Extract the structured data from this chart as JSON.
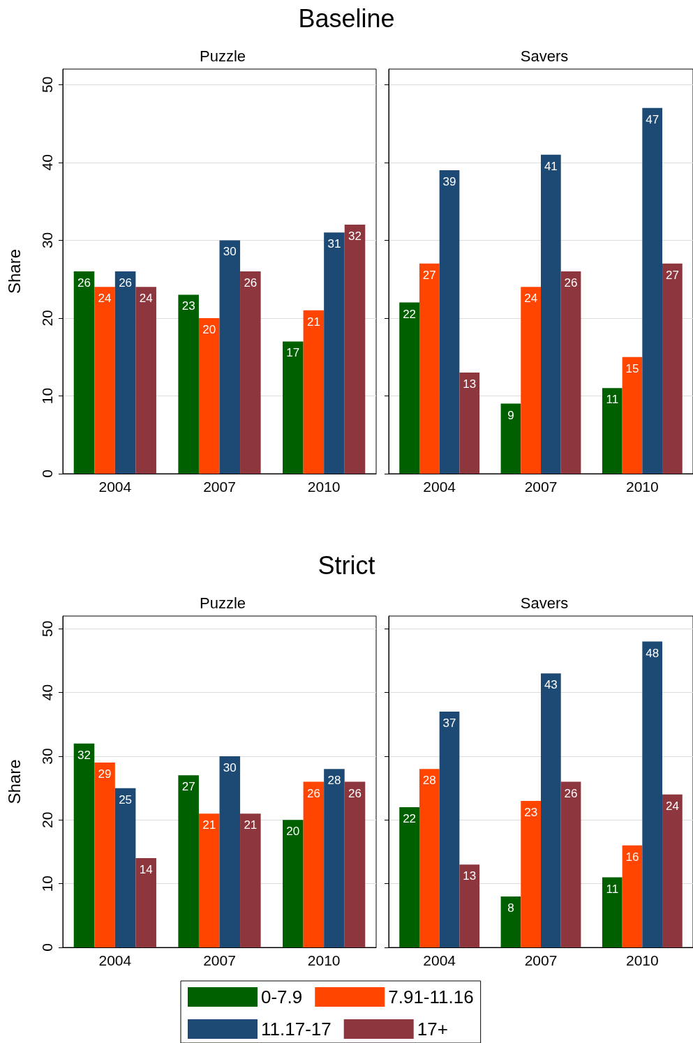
{
  "chart_data": [
    {
      "type": "bar",
      "title": "Puzzle",
      "annotations": [
        "Baseline"
      ],
      "ylabel": "Share",
      "categories": [
        "2004",
        "2007",
        "2010"
      ],
      "ylim": [
        0,
        52
      ],
      "yticks": [
        0,
        10,
        20,
        30,
        40,
        50
      ],
      "grid": "y",
      "data_labels": true,
      "series": [
        {
          "color": "#006000",
          "values": [
            26,
            23,
            17
          ]
        },
        {
          "color": "#ff4500",
          "values": [
            24,
            20,
            21
          ]
        },
        {
          "color": "#1d4a74",
          "values": [
            26,
            30,
            31
          ]
        },
        {
          "color": "#8e363d",
          "values": [
            24,
            26,
            32
          ]
        }
      ]
    },
    {
      "type": "bar",
      "title": "Savers",
      "categories": [
        "2004",
        "2007",
        "2010"
      ],
      "ylim": [
        0,
        52
      ],
      "yticks": [
        0,
        10,
        20,
        30,
        40,
        50
      ],
      "grid": "y",
      "data_labels": true,
      "tick_labels": "x",
      "series": [
        {
          "color": "#006000",
          "values": [
            22,
            9,
            11
          ]
        },
        {
          "color": "#ff4500",
          "values": [
            27,
            24,
            15
          ]
        },
        {
          "color": "#1d4a74",
          "values": [
            39,
            41,
            47
          ]
        },
        {
          "color": "#8e363d",
          "values": [
            13,
            26,
            27
          ]
        }
      ]
    },
    {
      "type": "bar",
      "title": "Puzzle",
      "annotations": [
        "Strict"
      ],
      "ylabel": "Share",
      "categories": [
        "2004",
        "2007",
        "2010"
      ],
      "ylim": [
        0,
        52
      ],
      "yticks": [
        0,
        10,
        20,
        30,
        40,
        50
      ],
      "grid": "y",
      "data_labels": true,
      "series": [
        {
          "color": "#006000",
          "values": [
            32,
            27,
            20
          ]
        },
        {
          "color": "#ff4500",
          "values": [
            29,
            21,
            26
          ]
        },
        {
          "color": "#1d4a74",
          "values": [
            25,
            30,
            28
          ]
        },
        {
          "color": "#8e363d",
          "values": [
            14,
            21,
            26
          ]
        }
      ]
    },
    {
      "type": "bar",
      "title": "Savers",
      "categories": [
        "2004",
        "2007",
        "2010"
      ],
      "ylim": [
        0,
        52
      ],
      "yticks": [
        0,
        10,
        20,
        30,
        40,
        50
      ],
      "grid": "y",
      "data_labels": true,
      "tick_labels": "x",
      "legend": "bottom",
      "series": [
        {
          "name": "0-7.9",
          "color": "#006000",
          "values": [
            22,
            8,
            11
          ]
        },
        {
          "name": "7.91-11.16",
          "color": "#ff4500",
          "values": [
            28,
            23,
            16
          ]
        },
        {
          "name": "11.17-17",
          "color": "#1d4a74",
          "values": [
            37,
            43,
            48
          ]
        },
        {
          "name": "17+",
          "color": "#8e363d",
          "values": [
            13,
            26,
            24
          ]
        }
      ]
    }
  ]
}
